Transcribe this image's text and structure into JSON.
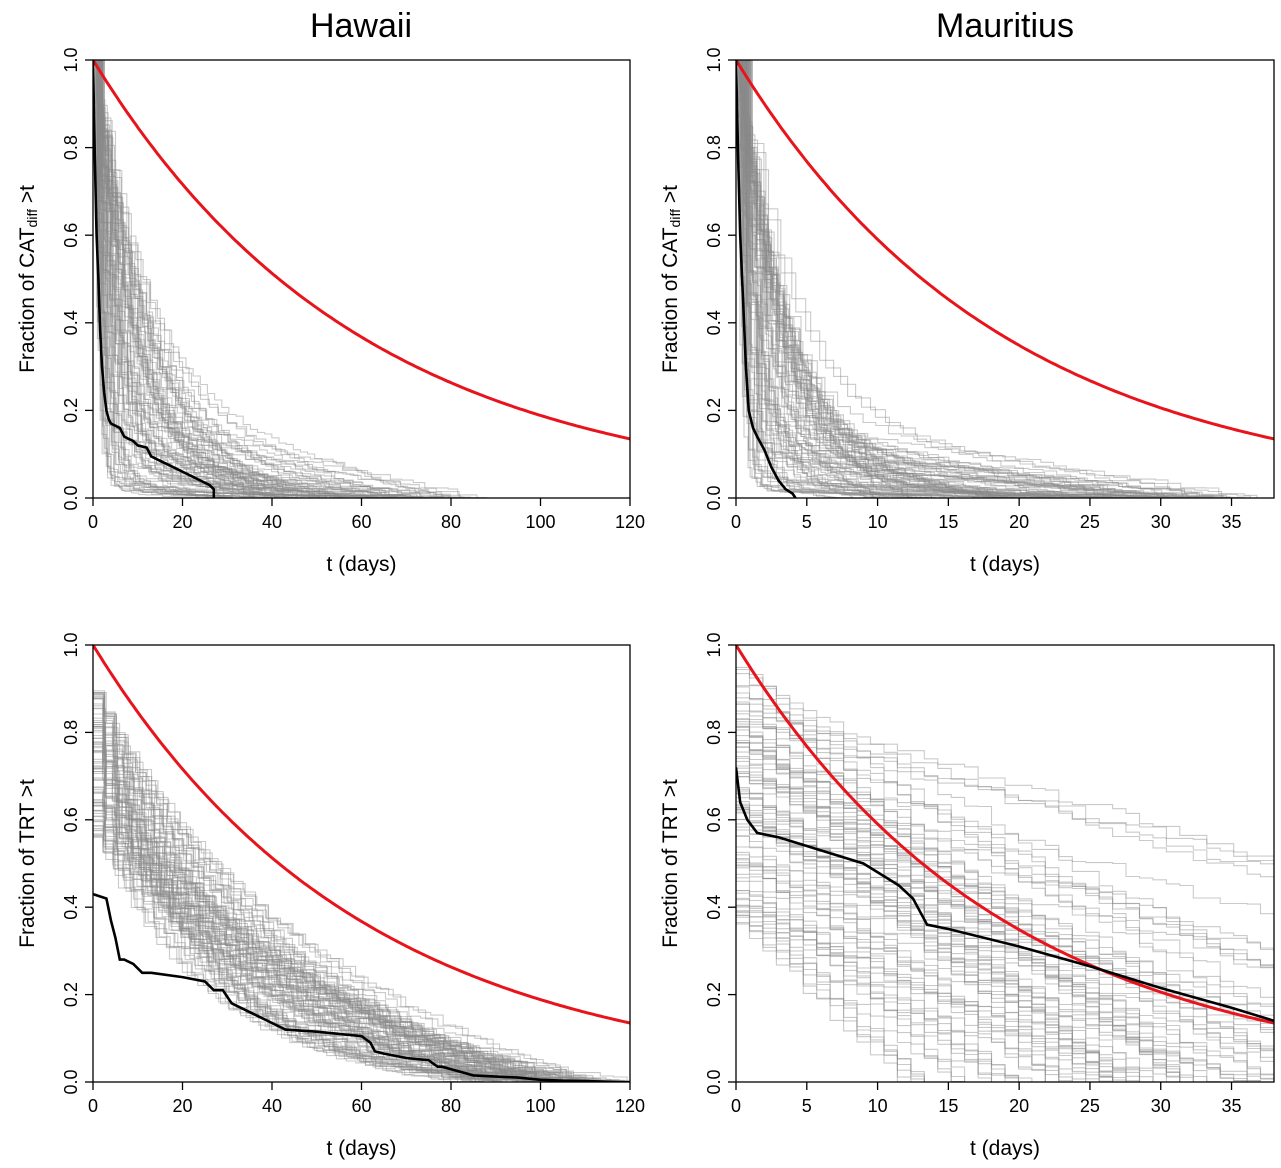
{
  "column_titles": [
    "Hawaii",
    "Mauritius"
  ],
  "chart_data": [
    {
      "type": "line",
      "panel": "top-left",
      "title": "Hawaii",
      "xlabel": "t (days)",
      "ylabel": "Fraction of CAT_diff >t",
      "ylabel_main": "Fraction of CAT",
      "ylabel_sub": "diff",
      "ylabel_tail": " >t",
      "xlim": [
        0,
        120
      ],
      "ylim": [
        0,
        1
      ],
      "xticks": [
        0,
        20,
        40,
        60,
        80,
        100,
        120
      ],
      "yticks": [
        0.0,
        0.2,
        0.4,
        0.6,
        0.8,
        1.0
      ],
      "ytick_labels": [
        "0.0",
        "0.2",
        "0.4",
        "0.6",
        "0.8",
        "1.0"
      ],
      "grid": false,
      "reference_curve": {
        "color": "#e8141b",
        "form": "exp",
        "y_at_xmax": 0.135
      },
      "observed_series": {
        "color": "#000000",
        "x": [
          0,
          0.4,
          0.8,
          1.2,
          1.6,
          2,
          2.5,
          3,
          3.5,
          4,
          6,
          7,
          9,
          10,
          12,
          13,
          15,
          18,
          21,
          24,
          26,
          27,
          27
        ],
        "y": [
          1.0,
          0.78,
          0.6,
          0.5,
          0.38,
          0.3,
          0.24,
          0.2,
          0.18,
          0.17,
          0.16,
          0.14,
          0.13,
          0.12,
          0.115,
          0.095,
          0.085,
          0.07,
          0.055,
          0.04,
          0.03,
          0.02,
          0.0
        ]
      },
      "simulated_envelope": {
        "color": "#8a8a8a",
        "n_lines": 90,
        "scale_range": [
          0.8,
          14
        ],
        "tail_level_range": [
          0.02,
          0.22
        ],
        "tail_end_range": [
          25,
          88
        ]
      }
    },
    {
      "type": "line",
      "panel": "top-right",
      "title": "Mauritius",
      "xlabel": "t (days)",
      "ylabel": "Fraction of CAT_diff >t",
      "ylabel_main": "Fraction of CAT",
      "ylabel_sub": "diff",
      "ylabel_tail": " >t",
      "xlim": [
        0,
        38
      ],
      "ylim": [
        0,
        1
      ],
      "xticks": [
        0,
        5,
        10,
        15,
        20,
        25,
        30,
        35
      ],
      "yticks": [
        0.0,
        0.2,
        0.4,
        0.6,
        0.8,
        1.0
      ],
      "ytick_labels": [
        "0.0",
        "0.2",
        "0.4",
        "0.6",
        "0.8",
        "1.0"
      ],
      "grid": false,
      "reference_curve": {
        "color": "#e8141b",
        "form": "exp",
        "y_at_xmax": 0.135
      },
      "observed_series": {
        "color": "#000000",
        "x": [
          0,
          0.15,
          0.3,
          0.5,
          0.7,
          0.9,
          1.2,
          1.5,
          2,
          2.5,
          3,
          3.5,
          4,
          4.2
        ],
        "y": [
          1.0,
          0.78,
          0.6,
          0.45,
          0.3,
          0.2,
          0.16,
          0.14,
          0.11,
          0.07,
          0.04,
          0.02,
          0.01,
          0.0
        ]
      },
      "simulated_envelope": {
        "color": "#8a8a8a",
        "n_lines": 90,
        "scale_range": [
          0.25,
          4
        ],
        "tail_level_range": [
          0.02,
          0.2
        ],
        "tail_end_range": [
          8,
          38
        ]
      }
    },
    {
      "type": "line",
      "panel": "bottom-left",
      "title": "",
      "xlabel": "t (days)",
      "ylabel": "Fraction of TRT >t",
      "ylabel_main": "Fraction of TRT >t",
      "ylabel_sub": "",
      "ylabel_tail": "",
      "xlim": [
        0,
        120
      ],
      "ylim": [
        0,
        1
      ],
      "xticks": [
        0,
        20,
        40,
        60,
        80,
        100,
        120
      ],
      "yticks": [
        0.0,
        0.2,
        0.4,
        0.6,
        0.8,
        1.0
      ],
      "ytick_labels": [
        "0.0",
        "0.2",
        "0.4",
        "0.6",
        "0.8",
        "1.0"
      ],
      "grid": false,
      "reference_curve": {
        "color": "#e8141b",
        "form": "exp",
        "y_at_xmax": 0.135
      },
      "observed_series": {
        "color": "#000000",
        "x": [
          0,
          3,
          4,
          5,
          6,
          7,
          9,
          11,
          13,
          20,
          25,
          27,
          29,
          31,
          35,
          38,
          40,
          43,
          50,
          55,
          60,
          62,
          63,
          65,
          70,
          75,
          77,
          78,
          85,
          95,
          100,
          105,
          110,
          118,
          120
        ],
        "y": [
          0.43,
          0.42,
          0.37,
          0.33,
          0.28,
          0.28,
          0.27,
          0.25,
          0.25,
          0.24,
          0.23,
          0.21,
          0.21,
          0.18,
          0.16,
          0.145,
          0.135,
          0.12,
          0.115,
          0.11,
          0.105,
          0.09,
          0.07,
          0.065,
          0.055,
          0.05,
          0.035,
          0.035,
          0.015,
          0.01,
          0.005,
          0.003,
          0.002,
          0.0,
          0.0
        ]
      },
      "simulated_envelope": {
        "color": "#8a8a8a",
        "n_lines": 90,
        "start_range": [
          0.55,
          0.9
        ],
        "scale_range": [
          22,
          52
        ],
        "tail_end_range": [
          85,
          120
        ]
      }
    },
    {
      "type": "line",
      "panel": "bottom-right",
      "title": "",
      "xlabel": "t (days)",
      "ylabel": "Fraction of TRT >t",
      "ylabel_main": "Fraction of TRT >t",
      "ylabel_sub": "",
      "ylabel_tail": "",
      "xlim": [
        0,
        38
      ],
      "ylim": [
        0,
        1
      ],
      "xticks": [
        0,
        5,
        10,
        15,
        20,
        25,
        30,
        35
      ],
      "yticks": [
        0.0,
        0.2,
        0.4,
        0.6,
        0.8,
        1.0
      ],
      "ytick_labels": [
        "0.0",
        "0.2",
        "0.4",
        "0.6",
        "0.8",
        "1.0"
      ],
      "grid": false,
      "reference_curve": {
        "color": "#e8141b",
        "form": "exp",
        "y_at_xmax": 0.135
      },
      "observed_series": {
        "color": "#000000",
        "x": [
          0,
          0.3,
          0.8,
          1.5,
          3,
          5,
          7,
          9,
          9.5,
          10.5,
          11.5,
          12.5,
          13.5,
          15,
          20,
          25,
          30,
          35,
          38
        ],
        "y": [
          0.72,
          0.64,
          0.6,
          0.57,
          0.56,
          0.54,
          0.52,
          0.5,
          0.49,
          0.47,
          0.45,
          0.42,
          0.36,
          0.35,
          0.31,
          0.265,
          0.215,
          0.17,
          0.14
        ]
      },
      "simulated_envelope": {
        "color": "#8a8a8a",
        "n_lines": 90,
        "start_range": [
          0.35,
          0.95
        ],
        "slope_range": [
          0.008,
          0.035
        ],
        "floor": 0.0
      }
    }
  ]
}
